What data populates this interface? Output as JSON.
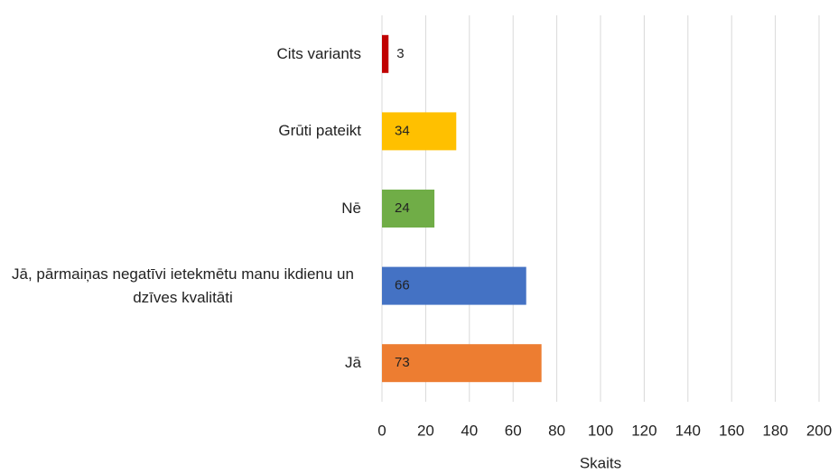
{
  "chart_data": {
    "type": "hbar",
    "categories": [
      "Cits variants",
      "Grūti pateikt",
      "Nē",
      "Jā, pārmaiņas negatīvi ietekmētu manu ikdienu un dzīves kvalitāti",
      "Jā"
    ],
    "values": [
      3,
      34,
      24,
      66,
      73
    ],
    "colors": [
      "#c00000",
      "#ffc000",
      "#70ad47",
      "#4472c4",
      "#ed7d31"
    ],
    "xlabel": "Skaits",
    "xlim": [
      0,
      200
    ],
    "xticks": [
      0,
      20,
      40,
      60,
      80,
      100,
      120,
      140,
      160,
      180,
      200
    ],
    "grid": true
  }
}
